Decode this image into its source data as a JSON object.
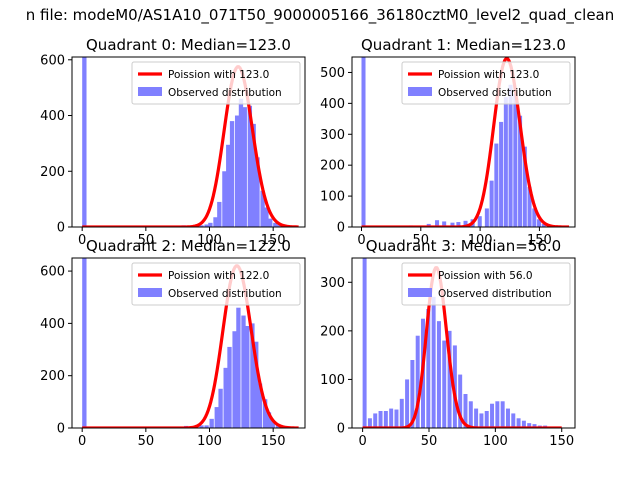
{
  "suptitle": "n file: modeM0/AS1A10_071T50_9000005166_36180cztM0_level2_quad_clean",
  "colors": {
    "observed": "#8080ff",
    "poisson": "#ff0000"
  },
  "chart_data": [
    {
      "type": "bar",
      "title": "Quadrant 0: Median=123.0",
      "legend": {
        "placement": "top-right",
        "poisson_label": "Poission with 123.0",
        "observed_label": "Observed distribution"
      },
      "xlim": [
        -8,
        175
      ],
      "ylim": [
        0,
        610
      ],
      "xticks": [
        0,
        50,
        100,
        150
      ],
      "yticks": [
        0,
        200,
        400,
        600
      ],
      "bin_width": 3.4,
      "bars": [
        [
          0,
          620
        ],
        [
          78,
          6
        ],
        [
          82,
          5
        ],
        [
          85,
          4
        ],
        [
          89,
          3
        ],
        [
          92,
          6
        ],
        [
          96,
          9
        ],
        [
          99,
          15
        ],
        [
          103,
          35
        ],
        [
          106,
          90
        ],
        [
          110,
          200
        ],
        [
          113,
          295
        ],
        [
          116,
          380
        ],
        [
          120,
          400
        ],
        [
          123,
          460
        ],
        [
          126,
          430
        ],
        [
          130,
          435
        ],
        [
          133,
          370
        ],
        [
          136,
          250
        ],
        [
          140,
          130
        ],
        [
          143,
          70
        ],
        [
          146,
          30
        ],
        [
          150,
          15
        ],
        [
          153,
          7
        ],
        [
          157,
          4
        ]
      ],
      "poisson": {
        "mean": 123,
        "peak": 575,
        "xmin": 0,
        "xmax": 170
      }
    },
    {
      "type": "bar",
      "title": "Quadrant 1: Median=123.0",
      "legend": {
        "placement": "top-right",
        "poisson_label": "Poission with 123.0",
        "observed_label": "Observed distribution"
      },
      "xlim": [
        -8,
        180
      ],
      "ylim": [
        0,
        550
      ],
      "xticks": [
        0,
        50,
        100,
        150
      ],
      "yticks": [
        0,
        100,
        200,
        300,
        400,
        500
      ],
      "bin_width": 3.4,
      "bars": [
        [
          0,
          560
        ],
        [
          40,
          5
        ],
        [
          55,
          10
        ],
        [
          62,
          22
        ],
        [
          68,
          18
        ],
        [
          75,
          14
        ],
        [
          80,
          16
        ],
        [
          86,
          20
        ],
        [
          92,
          25
        ],
        [
          98,
          35
        ],
        [
          104,
          60
        ],
        [
          108,
          150
        ],
        [
          112,
          270
        ],
        [
          116,
          340
        ],
        [
          120,
          420
        ],
        [
          124,
          460
        ],
        [
          128,
          430
        ],
        [
          132,
          360
        ],
        [
          136,
          260
        ],
        [
          140,
          130
        ],
        [
          144,
          60
        ],
        [
          148,
          25
        ],
        [
          152,
          10
        ]
      ],
      "poisson": {
        "mean": 123,
        "peak": 545,
        "xmin": 0,
        "xmax": 175
      }
    },
    {
      "type": "bar",
      "title": "Quadrant 2: Median=122.0",
      "legend": {
        "placement": "top-right",
        "poisson_label": "Poission with 122.0",
        "observed_label": "Observed distribution"
      },
      "xlim": [
        -8,
        175
      ],
      "ylim": [
        0,
        650
      ],
      "xticks": [
        0,
        50,
        100,
        150
      ],
      "yticks": [
        0,
        200,
        400,
        600
      ],
      "bin_width": 3.4,
      "bars": [
        [
          0,
          660
        ],
        [
          70,
          5
        ],
        [
          80,
          8
        ],
        [
          88,
          8
        ],
        [
          92,
          10
        ],
        [
          96,
          10
        ],
        [
          100,
          35
        ],
        [
          104,
          80
        ],
        [
          107,
          150
        ],
        [
          111,
          230
        ],
        [
          114,
          310
        ],
        [
          118,
          370
        ],
        [
          121,
          460
        ],
        [
          125,
          430
        ],
        [
          128,
          390
        ],
        [
          132,
          400
        ],
        [
          135,
          330
        ],
        [
          138,
          170
        ],
        [
          142,
          110
        ],
        [
          145,
          60
        ],
        [
          148,
          30
        ],
        [
          152,
          12
        ]
      ],
      "poisson": {
        "mean": 122,
        "peak": 620,
        "xmin": 0,
        "xmax": 170
      }
    },
    {
      "type": "bar",
      "title": "Quadrant 3: Median=56.0",
      "legend": {
        "placement": "top-right",
        "poisson_label": "Poission with 56.0",
        "observed_label": "Observed distribution"
      },
      "xlim": [
        -8,
        160
      ],
      "ylim": [
        0,
        350
      ],
      "xticks": [
        0,
        50,
        100,
        150
      ],
      "yticks": [
        0,
        100,
        200,
        300
      ],
      "bin_width": 3.0,
      "bars": [
        [
          0,
          360
        ],
        [
          4,
          20
        ],
        [
          8,
          30
        ],
        [
          12,
          35
        ],
        [
          16,
          35
        ],
        [
          20,
          40
        ],
        [
          24,
          38
        ],
        [
          28,
          60
        ],
        [
          32,
          100
        ],
        [
          36,
          140
        ],
        [
          40,
          190
        ],
        [
          44,
          225
        ],
        [
          48,
          245
        ],
        [
          52,
          270
        ],
        [
          56,
          220
        ],
        [
          60,
          180
        ],
        [
          64,
          200
        ],
        [
          68,
          170
        ],
        [
          72,
          110
        ],
        [
          76,
          70
        ],
        [
          80,
          55
        ],
        [
          84,
          40
        ],
        [
          88,
          30
        ],
        [
          92,
          35
        ],
        [
          96,
          50
        ],
        [
          100,
          55
        ],
        [
          104,
          55
        ],
        [
          108,
          40
        ],
        [
          112,
          30
        ],
        [
          116,
          20
        ],
        [
          120,
          15
        ],
        [
          124,
          10
        ],
        [
          128,
          8
        ],
        [
          132,
          5
        ],
        [
          136,
          5
        ],
        [
          140,
          2
        ]
      ],
      "poisson": {
        "mean": 56,
        "peak": 330,
        "xmin": 0,
        "xmax": 150
      }
    }
  ]
}
